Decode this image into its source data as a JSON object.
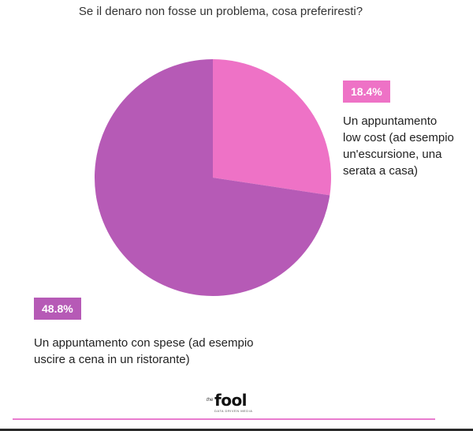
{
  "chart_data": {
    "type": "pie",
    "title": "Se il denaro non fosse un problema, cosa preferiresti?",
    "slices": [
      {
        "label": " Un appuntamento\nlow cost (ad esempio\nun'escursione, una\nserata a casa)",
        "value": 18.4,
        "value_label": "18.4%",
        "color": "#ee72c6"
      },
      {
        "label": " Un appuntamento con spese (ad esempio\nuscire a cena in un ristorante)",
        "value": 48.8,
        "value_label": "48.8%",
        "color": "#b65ab6"
      }
    ],
    "start_angle_deg": 0,
    "direction": "clockwise"
  },
  "brand": {
    "logo_prefix": "the",
    "logo_text": "fool",
    "logo_tagline": "DATA DRIVEN MEDIA",
    "accent_color": "#e97ccf"
  }
}
